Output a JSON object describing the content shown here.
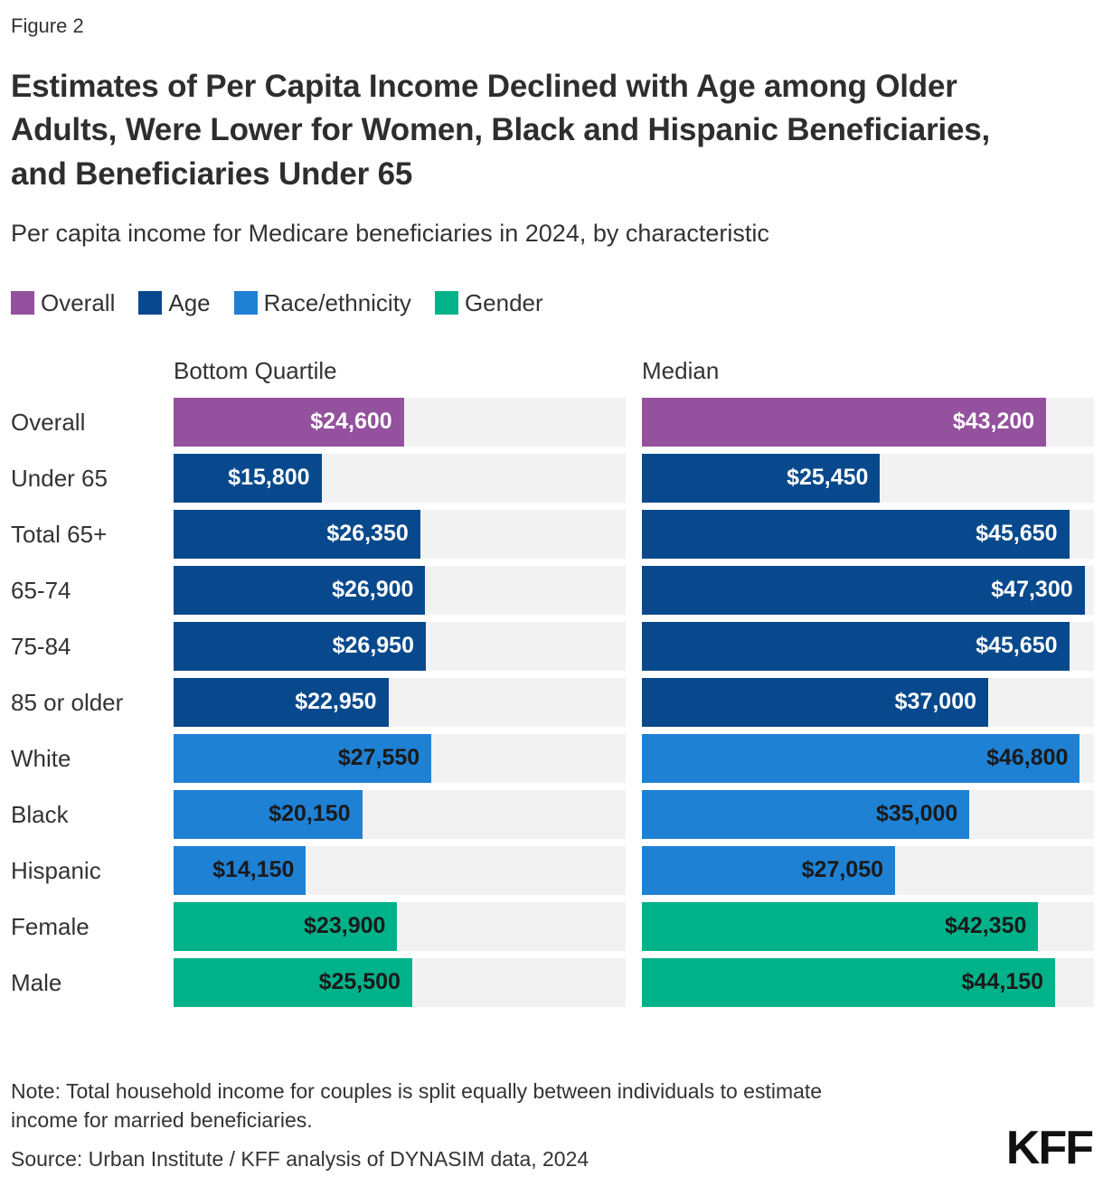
{
  "figure_label": "Figure 2",
  "title": "Estimates of Per Capita Income Declined with Age among Older Adults, Were Lower for Women, Black and Hispanic Beneficiaries, and Beneficiaries Under 65",
  "subtitle": "Per capita income for Medicare beneficiaries in 2024, by characteristic",
  "legend": [
    {
      "label": "Overall",
      "color": "#94519D"
    },
    {
      "label": "Age",
      "color": "#07498C"
    },
    {
      "label": "Race/ethnicity",
      "color": "#1E81D4"
    },
    {
      "label": "Gender",
      "color": "#00B289"
    }
  ],
  "columns": {
    "left": "Bottom Quartile",
    "right": "Median"
  },
  "group_colors": {
    "overall": "#94519D",
    "age": "#07498C",
    "race": "#1E81D4",
    "gender": "#00B289"
  },
  "group_text_colors": {
    "overall": "#ffffff",
    "age": "#ffffff",
    "race": "#1a1a1a",
    "gender": "#1a1a1a"
  },
  "chart_data": {
    "type": "bar",
    "orientation": "horizontal",
    "xlim": [
      0,
      48300
    ],
    "track_color": "#f2f2f2",
    "categories": [
      "Overall",
      "Under 65",
      "Total 65+",
      "65-74",
      "75-84",
      "85 or older",
      "White",
      "Black",
      "Hispanic",
      "Female",
      "Male"
    ],
    "series": [
      {
        "name": "Bottom Quartile",
        "values": [
          24600,
          15800,
          26350,
          26900,
          26950,
          22950,
          27550,
          20150,
          14150,
          23900,
          25500
        ]
      },
      {
        "name": "Median",
        "values": [
          43200,
          25450,
          45650,
          47300,
          45650,
          37000,
          46800,
          35000,
          27050,
          42350,
          44150
        ]
      }
    ],
    "rows": [
      {
        "label": "Overall",
        "group": "overall",
        "bq": 24600,
        "bq_label": "$24,600",
        "med": 43200,
        "med_label": "$43,200"
      },
      {
        "label": "Under 65",
        "group": "age",
        "bq": 15800,
        "bq_label": "$15,800",
        "med": 25450,
        "med_label": "$25,450"
      },
      {
        "label": "Total 65+",
        "group": "age",
        "bq": 26350,
        "bq_label": "$26,350",
        "med": 45650,
        "med_label": "$45,650"
      },
      {
        "label": "65-74",
        "group": "age",
        "bq": 26900,
        "bq_label": "$26,900",
        "med": 47300,
        "med_label": "$47,300"
      },
      {
        "label": "75-84",
        "group": "age",
        "bq": 26950,
        "bq_label": "$26,950",
        "med": 45650,
        "med_label": "$45,650"
      },
      {
        "label": "85 or older",
        "group": "age",
        "bq": 22950,
        "bq_label": "$22,950",
        "med": 37000,
        "med_label": "$37,000"
      },
      {
        "label": "White",
        "group": "race",
        "bq": 27550,
        "bq_label": "$27,550",
        "med": 46800,
        "med_label": "$46,800"
      },
      {
        "label": "Black",
        "group": "race",
        "bq": 20150,
        "bq_label": "$20,150",
        "med": 35000,
        "med_label": "$35,000"
      },
      {
        "label": "Hispanic",
        "group": "race",
        "bq": 14150,
        "bq_label": "$14,150",
        "med": 27050,
        "med_label": "$27,050"
      },
      {
        "label": "Female",
        "group": "gender",
        "bq": 23900,
        "bq_label": "$23,900",
        "med": 42350,
        "med_label": "$42,350"
      },
      {
        "label": "Male",
        "group": "gender",
        "bq": 25500,
        "bq_label": "$25,500",
        "med": 44150,
        "med_label": "$44,150"
      }
    ]
  },
  "note": "Note: Total household income for couples is split equally between individuals to estimate income for married beneficiaries.",
  "source": "Source: Urban Institute / KFF analysis of DYNASIM data, 2024",
  "logo": "KFF"
}
